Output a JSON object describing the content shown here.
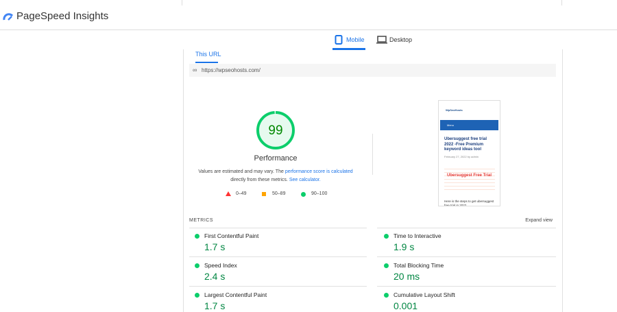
{
  "header": {
    "title": "PageSpeed Insights"
  },
  "tabs": [
    "Mobile",
    "Desktop"
  ],
  "subtab": "This URL",
  "url": "https://wpseohosts.com/",
  "score": {
    "value": 99,
    "label": "Performance"
  },
  "note": {
    "text1": "Values are estimated and may vary. The ",
    "link1": "performance score is calculated",
    "text2": "directly from these metrics. ",
    "link2": "See calculator."
  },
  "legend": [
    "0–49",
    "50–89",
    "90–100"
  ],
  "preview": {
    "site": "WpSeoHosts",
    "menu": "Menu",
    "headline": "Ubersuggest free trial 2022 -Free Premium keyword ideas tool",
    "date": "February 27, 2022 by admin",
    "image_text": "Ubersuggest Free Trial",
    "body": "Here is the steps to get ubersuggest free trial in 2022"
  },
  "metrics": {
    "title": "METRICS",
    "expand": "Expand view",
    "items": [
      {
        "name": "First Contentful Paint",
        "value": "1.7 s"
      },
      {
        "name": "Time to Interactive",
        "value": "1.9 s"
      },
      {
        "name": "Speed Index",
        "value": "2.4 s"
      },
      {
        "name": "Total Blocking Time",
        "value": "20 ms"
      },
      {
        "name": "Largest Contentful Paint",
        "value": "1.7 s"
      },
      {
        "name": "Cumulative Layout Shift",
        "value": "0.001"
      }
    ]
  }
}
